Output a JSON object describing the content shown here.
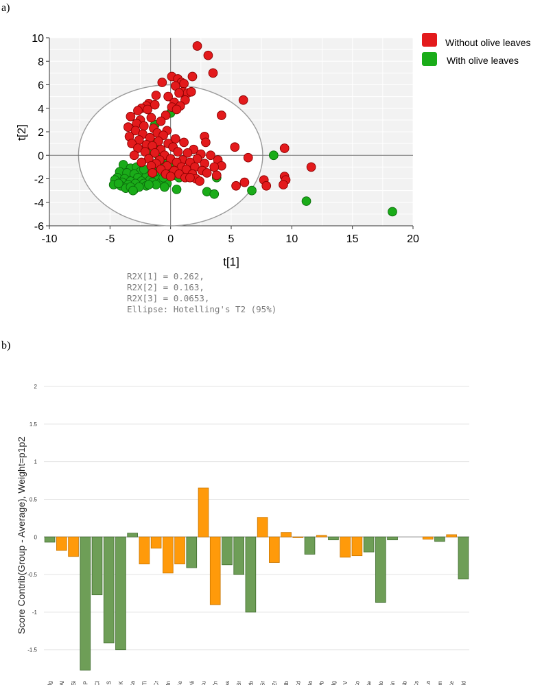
{
  "panel_a_label": "a)",
  "panel_b_label": "b)",
  "chart_data": [
    {
      "type": "scatter",
      "title": "",
      "xlabel": "t[1]",
      "ylabel": "t[2]",
      "xlim": [
        -10,
        20
      ],
      "ylim": [
        -6,
        10
      ],
      "xticks": [
        -10,
        -5,
        0,
        5,
        10,
        15,
        20
      ],
      "yticks": [
        -6,
        -4,
        -2,
        0,
        2,
        4,
        6,
        8,
        10
      ],
      "ellipse": {
        "center": [
          0,
          0
        ],
        "rx": 7.6,
        "ry": 6.0
      },
      "grid": true,
      "legend_position": "top-right",
      "stats": [
        "R2X[1] = 0.262,",
        "R2X[2] = 0.163,",
        "R2X[3] = 0.0653,",
        "Ellipse: Hotelling's T2 (95%)"
      ],
      "series": [
        {
          "name": "Without olive leaves",
          "color": "#e31a1c",
          "points": [
            [
              2.2,
              9.3
            ],
            [
              3.1,
              8.5
            ],
            [
              3.5,
              7.0
            ],
            [
              0.1,
              6.7
            ],
            [
              0.6,
              6.5
            ],
            [
              1.8,
              6.7
            ],
            [
              -0.7,
              6.2
            ],
            [
              0.9,
              6.2
            ],
            [
              1.1,
              6.1
            ],
            [
              0.4,
              5.9
            ],
            [
              1.0,
              5.4
            ],
            [
              1.4,
              5.3
            ],
            [
              1.7,
              5.4
            ],
            [
              0.7,
              5.3
            ],
            [
              -1.2,
              5.1
            ],
            [
              -0.2,
              5.0
            ],
            [
              6.0,
              4.7
            ],
            [
              1.2,
              4.7
            ],
            [
              0.3,
              4.5
            ],
            [
              -1.8,
              4.4
            ],
            [
              -2.0,
              4.2
            ],
            [
              -1.3,
              4.3
            ],
            [
              0.8,
              4.2
            ],
            [
              0.1,
              4.1
            ],
            [
              -2.4,
              4.0
            ],
            [
              -2.7,
              3.8
            ],
            [
              -1.9,
              3.9
            ],
            [
              0.5,
              3.9
            ],
            [
              -0.4,
              3.4
            ],
            [
              4.2,
              3.4
            ],
            [
              -3.3,
              3.3
            ],
            [
              -2.5,
              3.0
            ],
            [
              -1.6,
              3.2
            ],
            [
              -2.8,
              2.7
            ],
            [
              -0.8,
              2.9
            ],
            [
              -2.2,
              2.5
            ],
            [
              -3.5,
              2.4
            ],
            [
              -1.4,
              2.3
            ],
            [
              -0.3,
              2.1
            ],
            [
              -2.9,
              2.1
            ],
            [
              -1.1,
              1.9
            ],
            [
              -2.3,
              1.8
            ],
            [
              -3.4,
              1.6
            ],
            [
              -0.6,
              1.7
            ],
            [
              -1.7,
              1.5
            ],
            [
              -2.6,
              1.3
            ],
            [
              0.4,
              1.4
            ],
            [
              2.8,
              1.6
            ],
            [
              -1.0,
              1.2
            ],
            [
              -3.2,
              1.0
            ],
            [
              -2.0,
              0.9
            ],
            [
              -0.2,
              1.0
            ],
            [
              1.1,
              1.1
            ],
            [
              2.9,
              1.1
            ],
            [
              -1.5,
              0.8
            ],
            [
              -2.7,
              0.6
            ],
            [
              0.2,
              0.7
            ],
            [
              1.9,
              0.5
            ],
            [
              -0.8,
              0.5
            ],
            [
              5.3,
              0.7
            ],
            [
              9.4,
              0.6
            ],
            [
              -2.1,
              0.3
            ],
            [
              -1.3,
              0.2
            ],
            [
              0.6,
              0.3
            ],
            [
              1.4,
              0.2
            ],
            [
              -3.0,
              0.0
            ],
            [
              -0.5,
              0.0
            ],
            [
              2.5,
              0.1
            ],
            [
              3.3,
              0.0
            ],
            [
              6.4,
              -0.2
            ],
            [
              -1.8,
              -0.3
            ],
            [
              -0.9,
              -0.4
            ],
            [
              0.0,
              -0.3
            ],
            [
              1.0,
              -0.4
            ],
            [
              2.2,
              -0.3
            ],
            [
              3.9,
              -0.4
            ],
            [
              -2.4,
              -0.6
            ],
            [
              -1.2,
              -0.7
            ],
            [
              0.5,
              -0.6
            ],
            [
              1.6,
              -0.6
            ],
            [
              2.8,
              -0.7
            ],
            [
              4.2,
              -0.9
            ],
            [
              11.6,
              -1.0
            ],
            [
              -1.6,
              -0.9
            ],
            [
              -0.3,
              -0.9
            ],
            [
              0.9,
              -1.0
            ],
            [
              2.0,
              -1.0
            ],
            [
              3.6,
              -1.0
            ],
            [
              -0.8,
              -1.2
            ],
            [
              0.3,
              -1.3
            ],
            [
              1.3,
              -1.2
            ],
            [
              2.6,
              -1.3
            ],
            [
              1.8,
              -1.6
            ],
            [
              3.0,
              -1.5
            ],
            [
              -0.4,
              -1.6
            ],
            [
              0.7,
              -1.6
            ],
            [
              3.8,
              -1.7
            ],
            [
              1.2,
              -1.9
            ],
            [
              2.1,
              -2.0
            ],
            [
              7.7,
              -2.1
            ],
            [
              9.4,
              -1.8
            ],
            [
              9.5,
              -2.1
            ],
            [
              6.1,
              -2.3
            ],
            [
              5.4,
              -2.6
            ],
            [
              7.9,
              -2.6
            ],
            [
              9.3,
              -2.5
            ],
            [
              0.0,
              -1.8
            ],
            [
              -1.5,
              -1.5
            ],
            [
              1.6,
              -1.9
            ],
            [
              2.4,
              -2.2
            ]
          ]
        },
        {
          "name": "With olive leaves",
          "color": "#1aac19",
          "points": [
            [
              -3.9,
              -0.8
            ],
            [
              -3.3,
              -1.1
            ],
            [
              -2.8,
              -1.0
            ],
            [
              -4.2,
              -1.4
            ],
            [
              -3.6,
              -1.5
            ],
            [
              -2.5,
              -1.4
            ],
            [
              -3.0,
              -1.6
            ],
            [
              -4.4,
              -1.9
            ],
            [
              -3.8,
              -2.0
            ],
            [
              -2.7,
              -1.9
            ],
            [
              -2.0,
              -1.8
            ],
            [
              -1.4,
              -1.7
            ],
            [
              -4.6,
              -2.1
            ],
            [
              -4.0,
              -2.3
            ],
            [
              -3.3,
              -2.2
            ],
            [
              -2.4,
              -2.2
            ],
            [
              -1.7,
              -2.1
            ],
            [
              -1.0,
              -2.0
            ],
            [
              -4.7,
              -2.5
            ],
            [
              -4.1,
              -2.6
            ],
            [
              -3.5,
              -2.5
            ],
            [
              -2.9,
              -2.4
            ],
            [
              -2.2,
              -2.4
            ],
            [
              -1.5,
              -2.3
            ],
            [
              -0.8,
              -2.3
            ],
            [
              -0.3,
              -2.4
            ],
            [
              -3.7,
              -2.8
            ],
            [
              -3.0,
              -2.9
            ],
            [
              -2.0,
              -2.6
            ],
            [
              -1.2,
              -2.5
            ],
            [
              -3.3,
              -2.7
            ],
            [
              -2.6,
              -2.7
            ],
            [
              -4.3,
              -2.4
            ],
            [
              -1.8,
              -2.5
            ],
            [
              -0.6,
              -1.9
            ],
            [
              -1.3,
              -1.4
            ],
            [
              -2.2,
              -1.2
            ],
            [
              -0.2,
              -1.4
            ],
            [
              0.4,
              -1.7
            ],
            [
              -0.9,
              -1.1
            ],
            [
              -1.5,
              -0.9
            ],
            [
              -0.4,
              -0.7
            ],
            [
              0.2,
              -0.9
            ],
            [
              -0.2,
              -0.3
            ],
            [
              -1.0,
              0.0
            ],
            [
              -1.7,
              0.4
            ],
            [
              0.7,
              -1.9
            ],
            [
              0.5,
              -2.9
            ],
            [
              3.0,
              -3.1
            ],
            [
              3.6,
              -3.3
            ],
            [
              6.7,
              -3.0
            ],
            [
              11.2,
              -3.9
            ],
            [
              18.3,
              -4.8
            ],
            [
              8.5,
              0.0
            ],
            [
              3.8,
              -1.9
            ],
            [
              0.0,
              3.6
            ],
            [
              -1.3,
              2.6
            ],
            [
              -1.2,
              1.1
            ],
            [
              -0.5,
              -2.7
            ],
            [
              -3.1,
              -3.0
            ]
          ]
        }
      ]
    },
    {
      "type": "bar",
      "title": "",
      "xlabel": "",
      "ylabel": "Score Contrib(Group - Average), Weight=p1p2",
      "ylim": [
        -2,
        2
      ],
      "yticks": [
        -2,
        -1.5,
        -1,
        -0.5,
        0,
        0.5,
        1,
        1.5,
        2
      ],
      "grid": true,
      "colors": {
        "green": "#6e9e57",
        "orange": "#ff9a0a",
        "green_stroke": "#3e6a2c",
        "orange_stroke": "#c87500"
      },
      "categories": [
        "Mg",
        "Al",
        "Si",
        "P",
        "Cl",
        "S",
        "K",
        "Ca",
        "Ti",
        "Cr",
        "Mn",
        "Fe",
        "Ni",
        "Cu",
        "Zn",
        "As",
        "Br",
        "Rb",
        "Sr",
        "Zr",
        "Nb",
        "Cd",
        "Ba",
        "Pb",
        "Hg",
        "V",
        "Co",
        "Se",
        "Mo",
        "Sn",
        "Sb",
        "Cs",
        "La",
        "Sm",
        "Ce",
        "Nd"
      ],
      "values": [
        -0.07,
        -0.18,
        -0.26,
        -1.77,
        -0.77,
        -1.41,
        -1.5,
        0.05,
        -0.36,
        -0.15,
        -0.48,
        -0.36,
        -0.41,
        0.65,
        -0.9,
        -0.37,
        -0.5,
        -1.0,
        0.26,
        -0.34,
        0.06,
        -0.01,
        -0.23,
        0.02,
        -0.04,
        -0.27,
        -0.25,
        -0.2,
        -0.87,
        -0.04,
        0.0,
        0.0,
        -0.03,
        -0.06,
        0.03,
        -0.56
      ],
      "bar_colors": [
        "green",
        "orange",
        "orange",
        "green",
        "green",
        "green",
        "green",
        "green",
        "orange",
        "orange",
        "orange",
        "orange",
        "green",
        "orange",
        "orange",
        "green",
        "green",
        "green",
        "orange",
        "orange",
        "orange",
        "orange",
        "green",
        "orange",
        "green",
        "orange",
        "orange",
        "green",
        "green",
        "green",
        "green",
        "green",
        "orange",
        "green",
        "orange",
        "green"
      ]
    }
  ]
}
